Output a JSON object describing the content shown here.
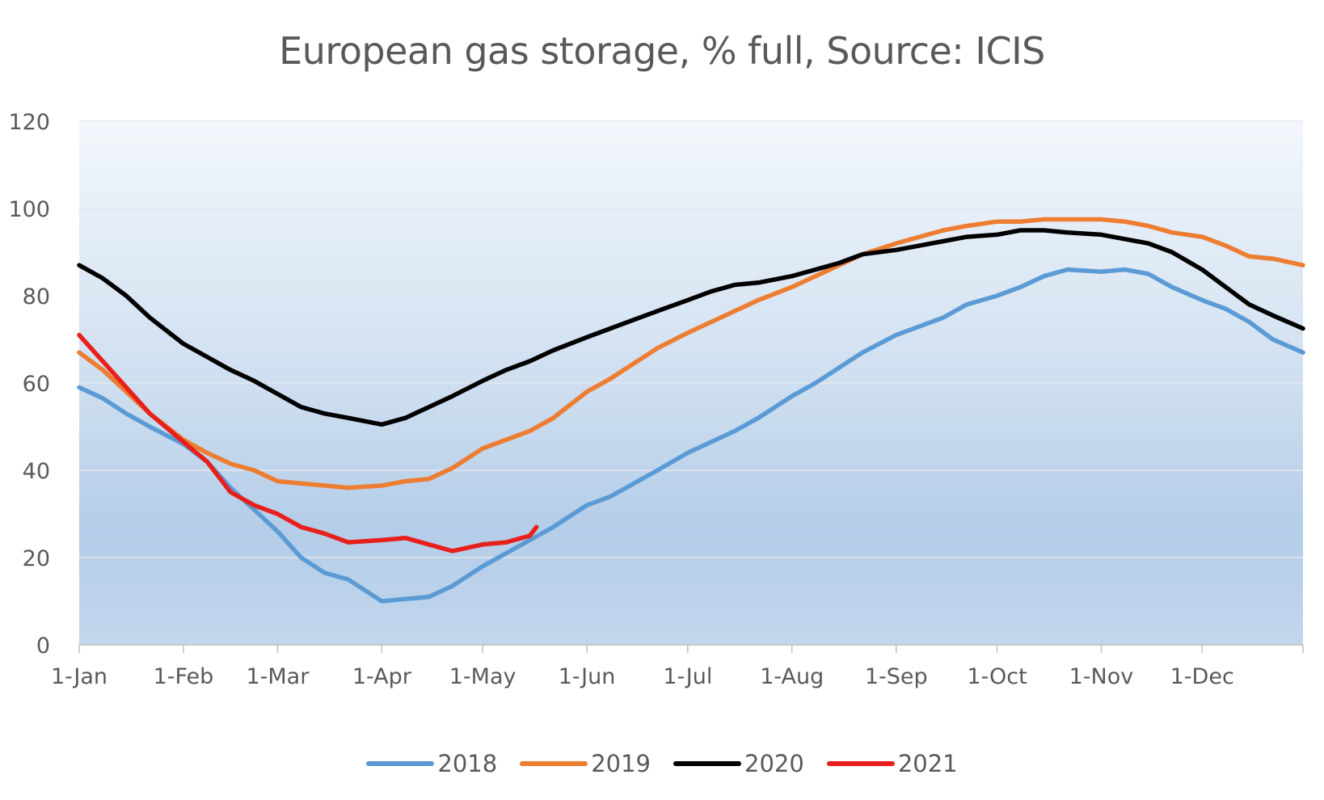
{
  "chart_data": {
    "type": "line",
    "title": "European gas storage, % full, Source: ICIS",
    "xlabel": "",
    "ylabel": "",
    "ylim": [
      0,
      120
    ],
    "yticks": [
      0,
      20,
      40,
      60,
      80,
      100,
      120
    ],
    "xlim": [
      "1-Jan",
      "31-Dec"
    ],
    "xticks": [
      "1-Jan",
      "1-Feb",
      "1-Mar",
      "1-Apr",
      "1-May",
      "1-Jun",
      "1-Jul",
      "1-Aug",
      "1-Sep",
      "1-Oct",
      "1-Nov",
      "1-Dec"
    ],
    "grid": true,
    "legend_position": "bottom",
    "series": [
      {
        "name": "2018",
        "color": "#5b9bd5",
        "points": [
          [
            "1-Jan",
            59
          ],
          [
            "8-Jan",
            56.5
          ],
          [
            "15-Jan",
            53
          ],
          [
            "22-Jan",
            50
          ],
          [
            "1-Feb",
            46
          ],
          [
            "8-Feb",
            42
          ],
          [
            "15-Feb",
            36
          ],
          [
            "22-Feb",
            31
          ],
          [
            "1-Mar",
            26
          ],
          [
            "8-Mar",
            20
          ],
          [
            "15-Mar",
            16.5
          ],
          [
            "22-Mar",
            15
          ],
          [
            "1-Apr",
            10
          ],
          [
            "8-Apr",
            10.5
          ],
          [
            "15-Apr",
            11
          ],
          [
            "22-Apr",
            13.5
          ],
          [
            "1-May",
            18
          ],
          [
            "8-May",
            21
          ],
          [
            "15-May",
            24
          ],
          [
            "22-May",
            27
          ],
          [
            "1-Jun",
            32
          ],
          [
            "8-Jun",
            34
          ],
          [
            "15-Jun",
            37
          ],
          [
            "22-Jun",
            40
          ],
          [
            "1-Jul",
            44
          ],
          [
            "8-Jul",
            46.5
          ],
          [
            "15-Jul",
            49
          ],
          [
            "22-Jul",
            52
          ],
          [
            "1-Aug",
            57
          ],
          [
            "8-Aug",
            60
          ],
          [
            "15-Aug",
            63.5
          ],
          [
            "22-Aug",
            67
          ],
          [
            "1-Sep",
            71
          ],
          [
            "8-Sep",
            73
          ],
          [
            "15-Sep",
            75
          ],
          [
            "22-Sep",
            78
          ],
          [
            "1-Oct",
            80
          ],
          [
            "8-Oct",
            82
          ],
          [
            "15-Oct",
            84.5
          ],
          [
            "22-Oct",
            86
          ],
          [
            "1-Nov",
            85.5
          ],
          [
            "8-Nov",
            86
          ],
          [
            "15-Nov",
            85
          ],
          [
            "22-Nov",
            82
          ],
          [
            "1-Dec",
            79
          ],
          [
            "8-Dec",
            77
          ],
          [
            "15-Dec",
            74
          ],
          [
            "22-Dec",
            70
          ],
          [
            "31-Dec",
            67
          ]
        ]
      },
      {
        "name": "2019",
        "color": "#ed7d31",
        "points": [
          [
            "1-Jan",
            67
          ],
          [
            "8-Jan",
            63
          ],
          [
            "15-Jan",
            58
          ],
          [
            "22-Jan",
            53
          ],
          [
            "1-Feb",
            47
          ],
          [
            "8-Feb",
            44
          ],
          [
            "15-Feb",
            41.5
          ],
          [
            "22-Feb",
            40
          ],
          [
            "1-Mar",
            37.5
          ],
          [
            "8-Mar",
            37
          ],
          [
            "15-Mar",
            36.5
          ],
          [
            "22-Mar",
            36
          ],
          [
            "1-Apr",
            36.5
          ],
          [
            "8-Apr",
            37.5
          ],
          [
            "15-Apr",
            38
          ],
          [
            "22-Apr",
            40.5
          ],
          [
            "1-May",
            45
          ],
          [
            "8-May",
            47
          ],
          [
            "15-May",
            49
          ],
          [
            "22-May",
            52
          ],
          [
            "1-Jun",
            58
          ],
          [
            "8-Jun",
            61
          ],
          [
            "15-Jun",
            64.5
          ],
          [
            "22-Jun",
            68
          ],
          [
            "1-Jul",
            71.5
          ],
          [
            "8-Jul",
            74
          ],
          [
            "15-Jul",
            76.5
          ],
          [
            "22-Jul",
            79
          ],
          [
            "1-Aug",
            82
          ],
          [
            "8-Aug",
            84.5
          ],
          [
            "15-Aug",
            87
          ],
          [
            "22-Aug",
            89.5
          ],
          [
            "1-Sep",
            92
          ],
          [
            "8-Sep",
            93.5
          ],
          [
            "15-Sep",
            95
          ],
          [
            "22-Sep",
            96
          ],
          [
            "1-Oct",
            97
          ],
          [
            "8-Oct",
            97
          ],
          [
            "15-Oct",
            97.5
          ],
          [
            "22-Oct",
            97.5
          ],
          [
            "1-Nov",
            97.5
          ],
          [
            "8-Nov",
            97
          ],
          [
            "15-Nov",
            96
          ],
          [
            "22-Nov",
            94.5
          ],
          [
            "1-Dec",
            93.5
          ],
          [
            "8-Dec",
            91.5
          ],
          [
            "15-Dec",
            89
          ],
          [
            "22-Dec",
            88.5
          ],
          [
            "31-Dec",
            87
          ]
        ]
      },
      {
        "name": "2020",
        "color": "#000000",
        "points": [
          [
            "1-Jan",
            87
          ],
          [
            "8-Jan",
            84
          ],
          [
            "15-Jan",
            80
          ],
          [
            "22-Jan",
            75
          ],
          [
            "1-Feb",
            69
          ],
          [
            "8-Feb",
            66
          ],
          [
            "15-Feb",
            63
          ],
          [
            "22-Feb",
            60.5
          ],
          [
            "1-Mar",
            57.5
          ],
          [
            "8-Mar",
            54.5
          ],
          [
            "15-Mar",
            53
          ],
          [
            "22-Mar",
            52
          ],
          [
            "1-Apr",
            50.5
          ],
          [
            "8-Apr",
            52
          ],
          [
            "15-Apr",
            54.5
          ],
          [
            "22-Apr",
            57
          ],
          [
            "1-May",
            60.5
          ],
          [
            "8-May",
            63
          ],
          [
            "15-May",
            65
          ],
          [
            "22-May",
            67.5
          ],
          [
            "1-Jun",
            70.5
          ],
          [
            "8-Jun",
            72.5
          ],
          [
            "15-Jun",
            74.5
          ],
          [
            "22-Jun",
            76.5
          ],
          [
            "1-Jul",
            79
          ],
          [
            "8-Jul",
            81
          ],
          [
            "15-Jul",
            82.5
          ],
          [
            "22-Jul",
            83
          ],
          [
            "1-Aug",
            84.5
          ],
          [
            "8-Aug",
            86
          ],
          [
            "15-Aug",
            87.5
          ],
          [
            "22-Aug",
            89.5
          ],
          [
            "1-Sep",
            90.5
          ],
          [
            "8-Sep",
            91.5
          ],
          [
            "15-Sep",
            92.5
          ],
          [
            "22-Sep",
            93.5
          ],
          [
            "1-Oct",
            94
          ],
          [
            "8-Oct",
            95
          ],
          [
            "15-Oct",
            95
          ],
          [
            "22-Oct",
            94.5
          ],
          [
            "1-Nov",
            94
          ],
          [
            "8-Nov",
            93
          ],
          [
            "15-Nov",
            92
          ],
          [
            "22-Nov",
            90
          ],
          [
            "1-Dec",
            86
          ],
          [
            "8-Dec",
            82
          ],
          [
            "15-Dec",
            78
          ],
          [
            "22-Dec",
            75.5
          ],
          [
            "31-Dec",
            72.5
          ]
        ]
      },
      {
        "name": "2021",
        "color": "#e8201c",
        "points": [
          [
            "1-Jan",
            71
          ],
          [
            "8-Jan",
            65
          ],
          [
            "15-Jan",
            59
          ],
          [
            "22-Jan",
            53
          ],
          [
            "1-Feb",
            46.5
          ],
          [
            "8-Feb",
            42
          ],
          [
            "15-Feb",
            35
          ],
          [
            "22-Feb",
            32
          ],
          [
            "1-Mar",
            30
          ],
          [
            "8-Mar",
            27
          ],
          [
            "15-Mar",
            25.5
          ],
          [
            "22-Mar",
            23.5
          ],
          [
            "1-Apr",
            24
          ],
          [
            "8-Apr",
            24.5
          ],
          [
            "15-Apr",
            23
          ],
          [
            "22-Apr",
            21.5
          ],
          [
            "1-May",
            23
          ],
          [
            "8-May",
            23.5
          ],
          [
            "15-May",
            25
          ],
          [
            "17-May",
            27
          ]
        ]
      }
    ]
  }
}
